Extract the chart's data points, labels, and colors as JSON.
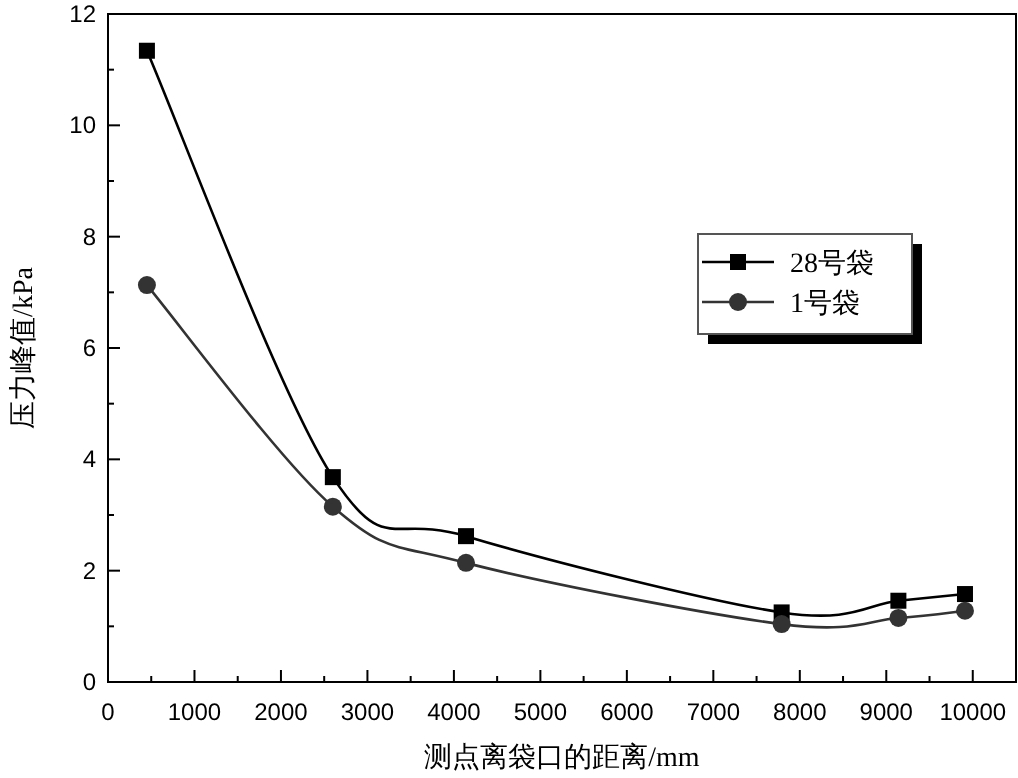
{
  "chart_data": {
    "type": "line",
    "xlabel": "测点离袋口的距离/mm",
    "ylabel": "压力峰值/kPa",
    "x": [
      450,
      2600,
      4140,
      7790,
      9140,
      9910
    ],
    "series": [
      {
        "name": "28号袋",
        "color": "#000000",
        "marker": "square",
        "values": [
          11.34,
          3.68,
          2.62,
          1.25,
          1.46,
          1.58
        ]
      },
      {
        "name": "1号袋",
        "color": "#333333",
        "marker": "circle",
        "values": [
          7.13,
          3.15,
          2.14,
          1.04,
          1.15,
          1.28
        ]
      }
    ],
    "xlim": [
      0,
      10500
    ],
    "xticks": [
      0,
      1000,
      2000,
      3000,
      4000,
      5000,
      6000,
      7000,
      8000,
      9000,
      10000
    ],
    "ylim": [
      0,
      12
    ],
    "yticks": [
      0,
      2,
      4,
      6,
      8,
      10,
      12
    ],
    "grid": false,
    "legend": "right",
    "line_style": "solid"
  }
}
